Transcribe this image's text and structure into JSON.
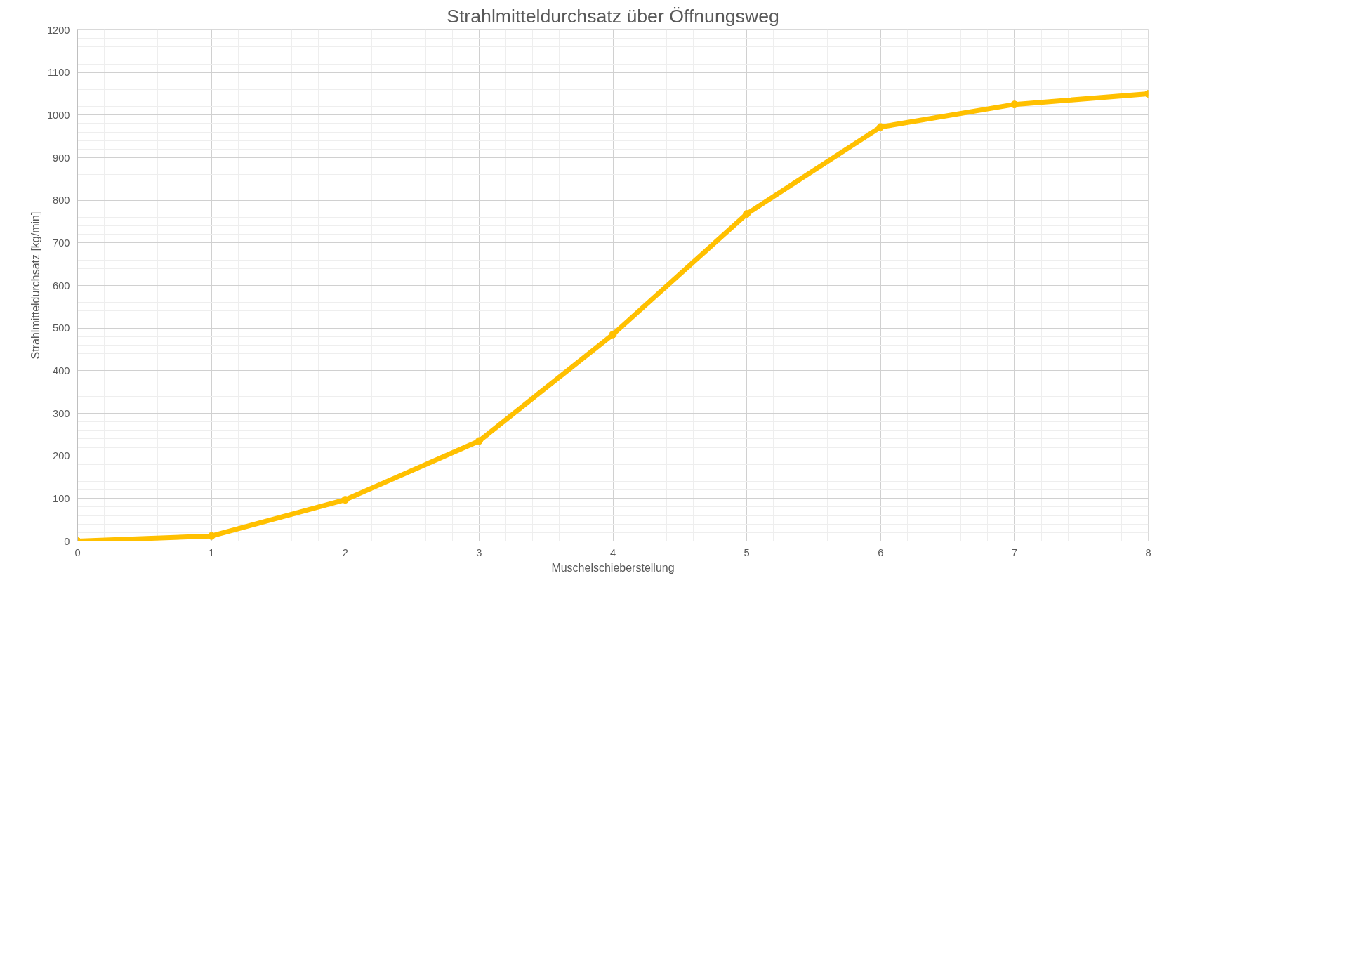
{
  "chart_data": {
    "type": "line",
    "title": "Strahlmitteldurchsatz über Öffnungsweg",
    "xlabel": "Muschelschieberstellung",
    "ylabel": "Strahlmitteldurchsatz [kg/min]",
    "x": [
      0,
      1,
      2,
      3,
      4,
      5,
      6,
      7,
      8
    ],
    "series": [
      {
        "color": "#ffc000",
        "values": [
          0,
          12,
          97,
          235,
          485,
          768,
          972,
          1025,
          1050
        ]
      }
    ],
    "xlim": [
      0,
      8
    ],
    "xticks": [
      0,
      1,
      2,
      3,
      4,
      5,
      6,
      7,
      8
    ],
    "ylim": [
      0,
      1200
    ],
    "yticks": [
      0,
      100,
      200,
      300,
      400,
      500,
      600,
      700,
      800,
      900,
      1000,
      1100,
      1200
    ],
    "grid": true,
    "marker": "circle",
    "line_style": "solid"
  }
}
